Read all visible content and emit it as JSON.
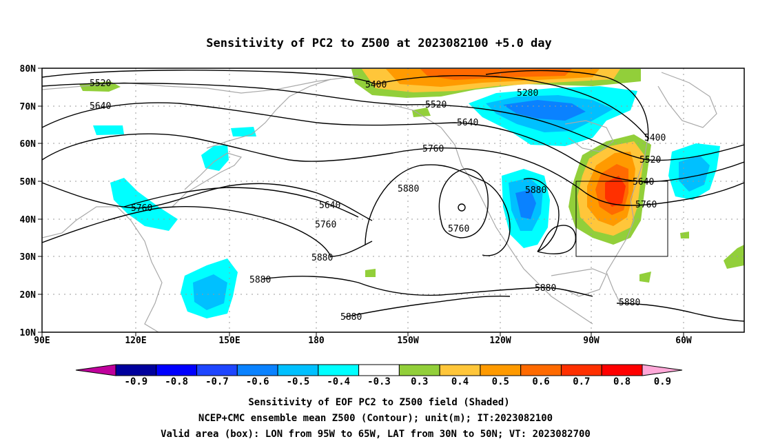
{
  "title": "Sensitivity of PC2 to Z500 at 2023082100 +5.0 day",
  "map": {
    "lon_range": [
      "90E",
      "50W"
    ],
    "lat_range": [
      "10N",
      "80N"
    ],
    "lon_ticks": [
      "90E",
      "120E",
      "150E",
      "180",
      "150W",
      "120W",
      "90W",
      "60W"
    ],
    "lat_ticks": [
      "10N",
      "20N",
      "30N",
      "40N",
      "50N",
      "60N",
      "70N",
      "80N"
    ],
    "grid": "dotted",
    "valid_box": {
      "lon_min": -95,
      "lon_max": -65,
      "lat_min": 30,
      "lat_max": 50
    }
  },
  "contour_labels": [
    "5520",
    "5640",
    "5760",
    "5880",
    "5400",
    "5280",
    "5520",
    "5640",
    "5760",
    "5880",
    "5640",
    "5760",
    "5880",
    "5760",
    "5880",
    "5880",
    "5400",
    "5520",
    "5640",
    "5760",
    "5880",
    "5880"
  ],
  "colorbar": {
    "labels": [
      "-0.9",
      "-0.8",
      "-0.7",
      "-0.6",
      "-0.5",
      "-0.4",
      "-0.3",
      "0.3",
      "0.4",
      "0.5",
      "0.6",
      "0.7",
      "0.8",
      "0.9"
    ],
    "colors": [
      "#00009c",
      "#0000ff",
      "#1e46ff",
      "#0a82ff",
      "#00c0ff",
      "#00ffff",
      "#ffffff",
      "#92cf3a",
      "#ffc63a",
      "#ff9a00",
      "#ff6a00",
      "#ff3000",
      "#ff0000"
    ],
    "left_triangle": "#c0009c",
    "right_triangle": "#ffa8d8"
  },
  "caption": [
    "Sensitivity of EOF PC2 to Z500 field (Shaded)",
    "NCEP+CMC ensemble mean Z500 (Contour); unit(m); IT:2023082100",
    "Valid area (box): LON from 95W to 65W, LAT from 30N to 50N; VT: 2023082700"
  ]
}
